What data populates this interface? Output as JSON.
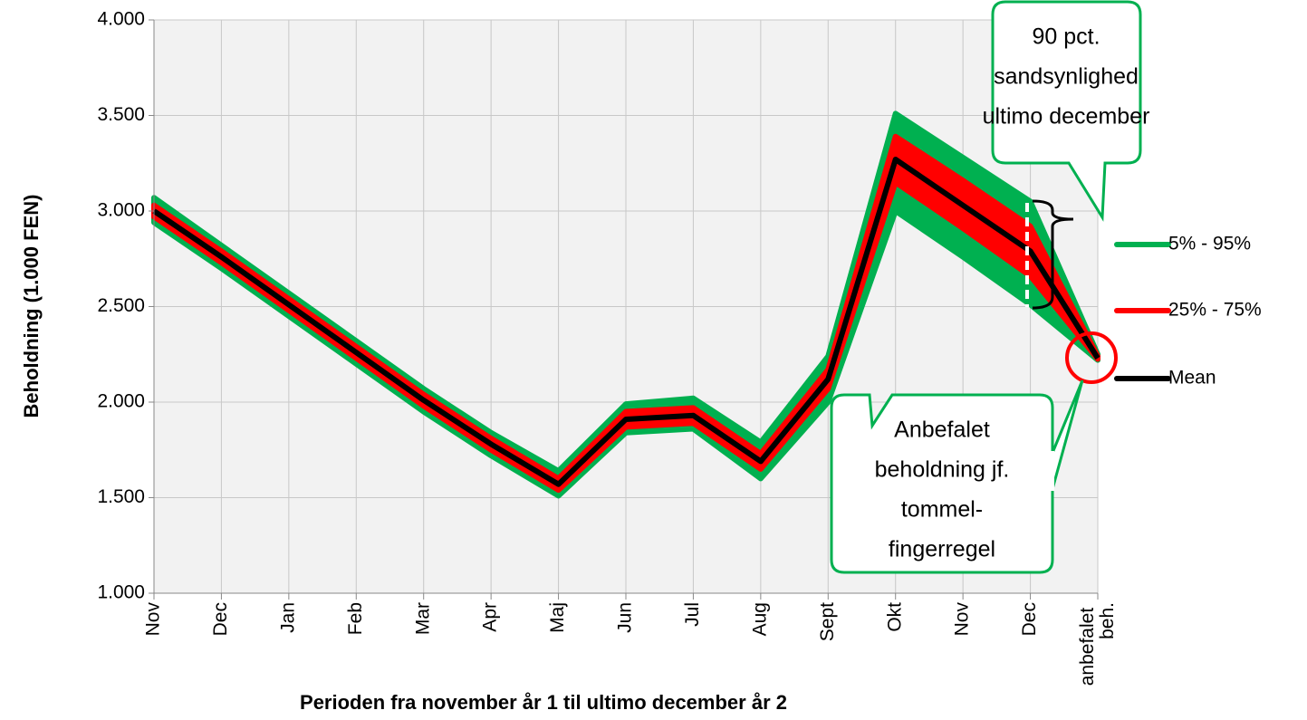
{
  "chart_data": {
    "type": "band-line",
    "y_label": "Beholdning (1.000 FEN)",
    "x_label": "Perioden fra november år 1 til ultimo december år 2",
    "categories": [
      "Nov",
      "Dec",
      "Jan",
      "Feb",
      "Mar",
      "Apr",
      "Maj",
      "Jun",
      "Jul",
      "Aug",
      "Sept",
      "Okt",
      "Nov",
      "Dec",
      "anbefalet beh."
    ],
    "ylim": [
      1000,
      4000
    ],
    "yticks": [
      {
        "value": 1000,
        "label": "1.000"
      },
      {
        "value": 1500,
        "label": "1.500"
      },
      {
        "value": 2000,
        "label": "2.000"
      },
      {
        "value": 2500,
        "label": "2.500"
      },
      {
        "value": 3000,
        "label": "3.000"
      },
      {
        "value": 3500,
        "label": "3.500"
      },
      {
        "value": 4000,
        "label": "4.000"
      }
    ],
    "grid": true,
    "series": [
      {
        "name": "5% - 95%",
        "color": "#00b050",
        "low": [
          2940,
          2700,
          2450,
          2200,
          1950,
          1720,
          1510,
          1840,
          1860,
          1600,
          2000,
          3000,
          2760,
          2510,
          2220
        ],
        "high": [
          3070,
          2820,
          2570,
          2320,
          2070,
          1840,
          1640,
          1990,
          2020,
          1790,
          2240,
          3510,
          3280,
          3050,
          2250
        ]
      },
      {
        "name": "25% - 75%",
        "color": "#ff0000",
        "low": [
          2970,
          2730,
          2480,
          2230,
          1980,
          1750,
          1540,
          1870,
          1890,
          1650,
          2070,
          3150,
          2910,
          2660,
          2225
        ],
        "high": [
          3030,
          2790,
          2540,
          2290,
          2040,
          1810,
          1600,
          1950,
          1970,
          1730,
          2170,
          3390,
          3160,
          2920,
          2240
        ]
      },
      {
        "name": "Mean",
        "color": "#000000",
        "values": [
          3000,
          2760,
          2510,
          2260,
          2010,
          1780,
          1570,
          1910,
          1930,
          1690,
          2120,
          3270,
          3030,
          2790,
          2230
        ]
      }
    ],
    "annotations": [
      {
        "lines": [
          "90 pct.",
          "sandsynlighed",
          "ultimo december"
        ]
      },
      {
        "lines": [
          "Anbefalet",
          "beholdning jf.",
          "tommel-",
          "fingerregel"
        ]
      }
    ]
  }
}
